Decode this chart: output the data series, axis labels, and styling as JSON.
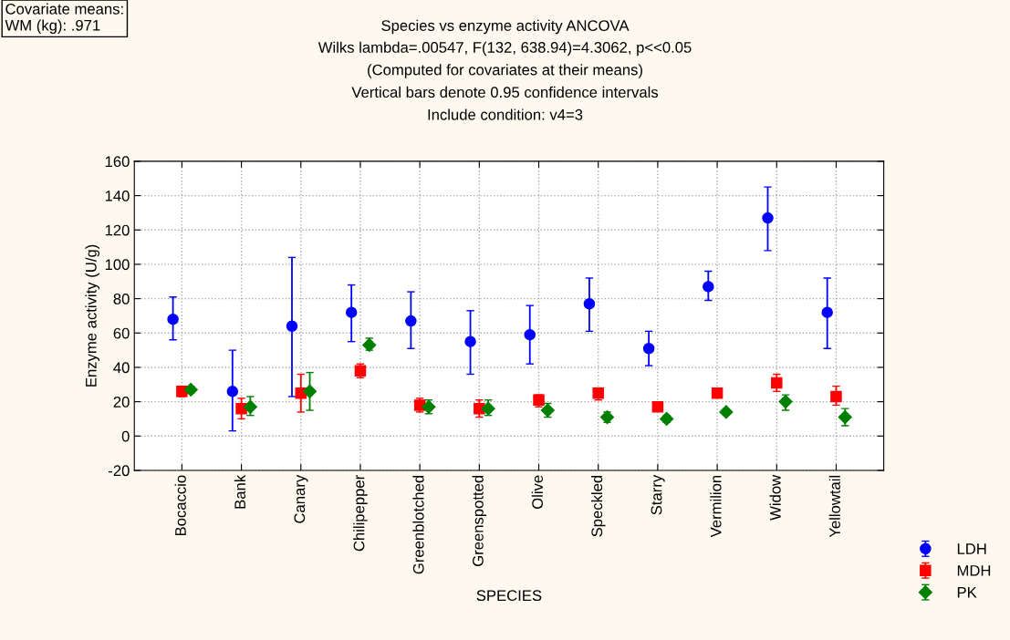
{
  "chart_data": {
    "type": "scatter",
    "title": "Species vs enzyme activity ANCOVA",
    "subtitle": "Wilks lambda=.00547, F(132, 638.94)=4.3062, p<<0.05\n(Computed for covariates at their means)\nVertical bars denote 0.95 confidence intervals\nInclude condition: v4=3",
    "annotations": [
      "Covariate means:\nWM (kg): .971"
    ],
    "xlabel": "SPECIES",
    "ylabel": "Enzyme activity (U/g)",
    "categories": [
      "Bocaccio",
      "Bank",
      "Canary",
      "Chilipepper",
      "Greenblotched",
      "Greenspotted",
      "Olive",
      "Speckled",
      "Starry",
      "Vermilion",
      "Widow",
      "Yellowtail"
    ],
    "series": [
      {
        "name": "LDH",
        "color": "#0000ff",
        "marker": "circle",
        "values": [
          68,
          26,
          64,
          72,
          67,
          55,
          59,
          77,
          51,
          87,
          127,
          72
        ],
        "errors": [
          [
            56,
            81
          ],
          [
            3,
            50
          ],
          [
            23,
            104
          ],
          [
            55,
            88
          ],
          [
            51,
            84
          ],
          [
            36,
            73
          ],
          [
            42,
            76
          ],
          [
            61,
            92
          ],
          [
            41,
            61
          ],
          [
            79,
            96
          ],
          [
            108,
            145
          ],
          [
            51,
            92
          ]
        ]
      },
      {
        "name": "MDH",
        "color": "#ff0000",
        "marker": "square",
        "values": [
          26,
          16,
          25,
          38,
          18,
          16,
          21,
          25,
          17,
          25,
          31,
          23
        ],
        "errors": [
          [
            23,
            28
          ],
          [
            10,
            22
          ],
          [
            14,
            36
          ],
          [
            34,
            42
          ],
          [
            14,
            22
          ],
          [
            11,
            21
          ],
          [
            17,
            24
          ],
          [
            21,
            28
          ],
          null,
          null,
          [
            26,
            36
          ],
          [
            18,
            29
          ]
        ]
      },
      {
        "name": "PK",
        "color": "#008000",
        "marker": "diamond",
        "values": [
          27,
          17,
          26,
          53,
          17,
          16,
          15,
          11,
          10,
          14,
          20,
          11
        ],
        "errors": [
          [
            25,
            29
          ],
          [
            12,
            23
          ],
          [
            15,
            37
          ],
          [
            50,
            57
          ],
          [
            13,
            21
          ],
          [
            12,
            21
          ],
          [
            11,
            19
          ],
          [
            8,
            14
          ],
          [
            8,
            12
          ],
          [
            13,
            15
          ],
          [
            15,
            24
          ],
          [
            6,
            16
          ]
        ]
      }
    ],
    "ylim": [
      -20,
      160
    ],
    "yticks": [
      -20,
      0,
      20,
      40,
      60,
      80,
      100,
      120,
      140,
      160
    ],
    "grid": true,
    "legend": "bottom right"
  }
}
